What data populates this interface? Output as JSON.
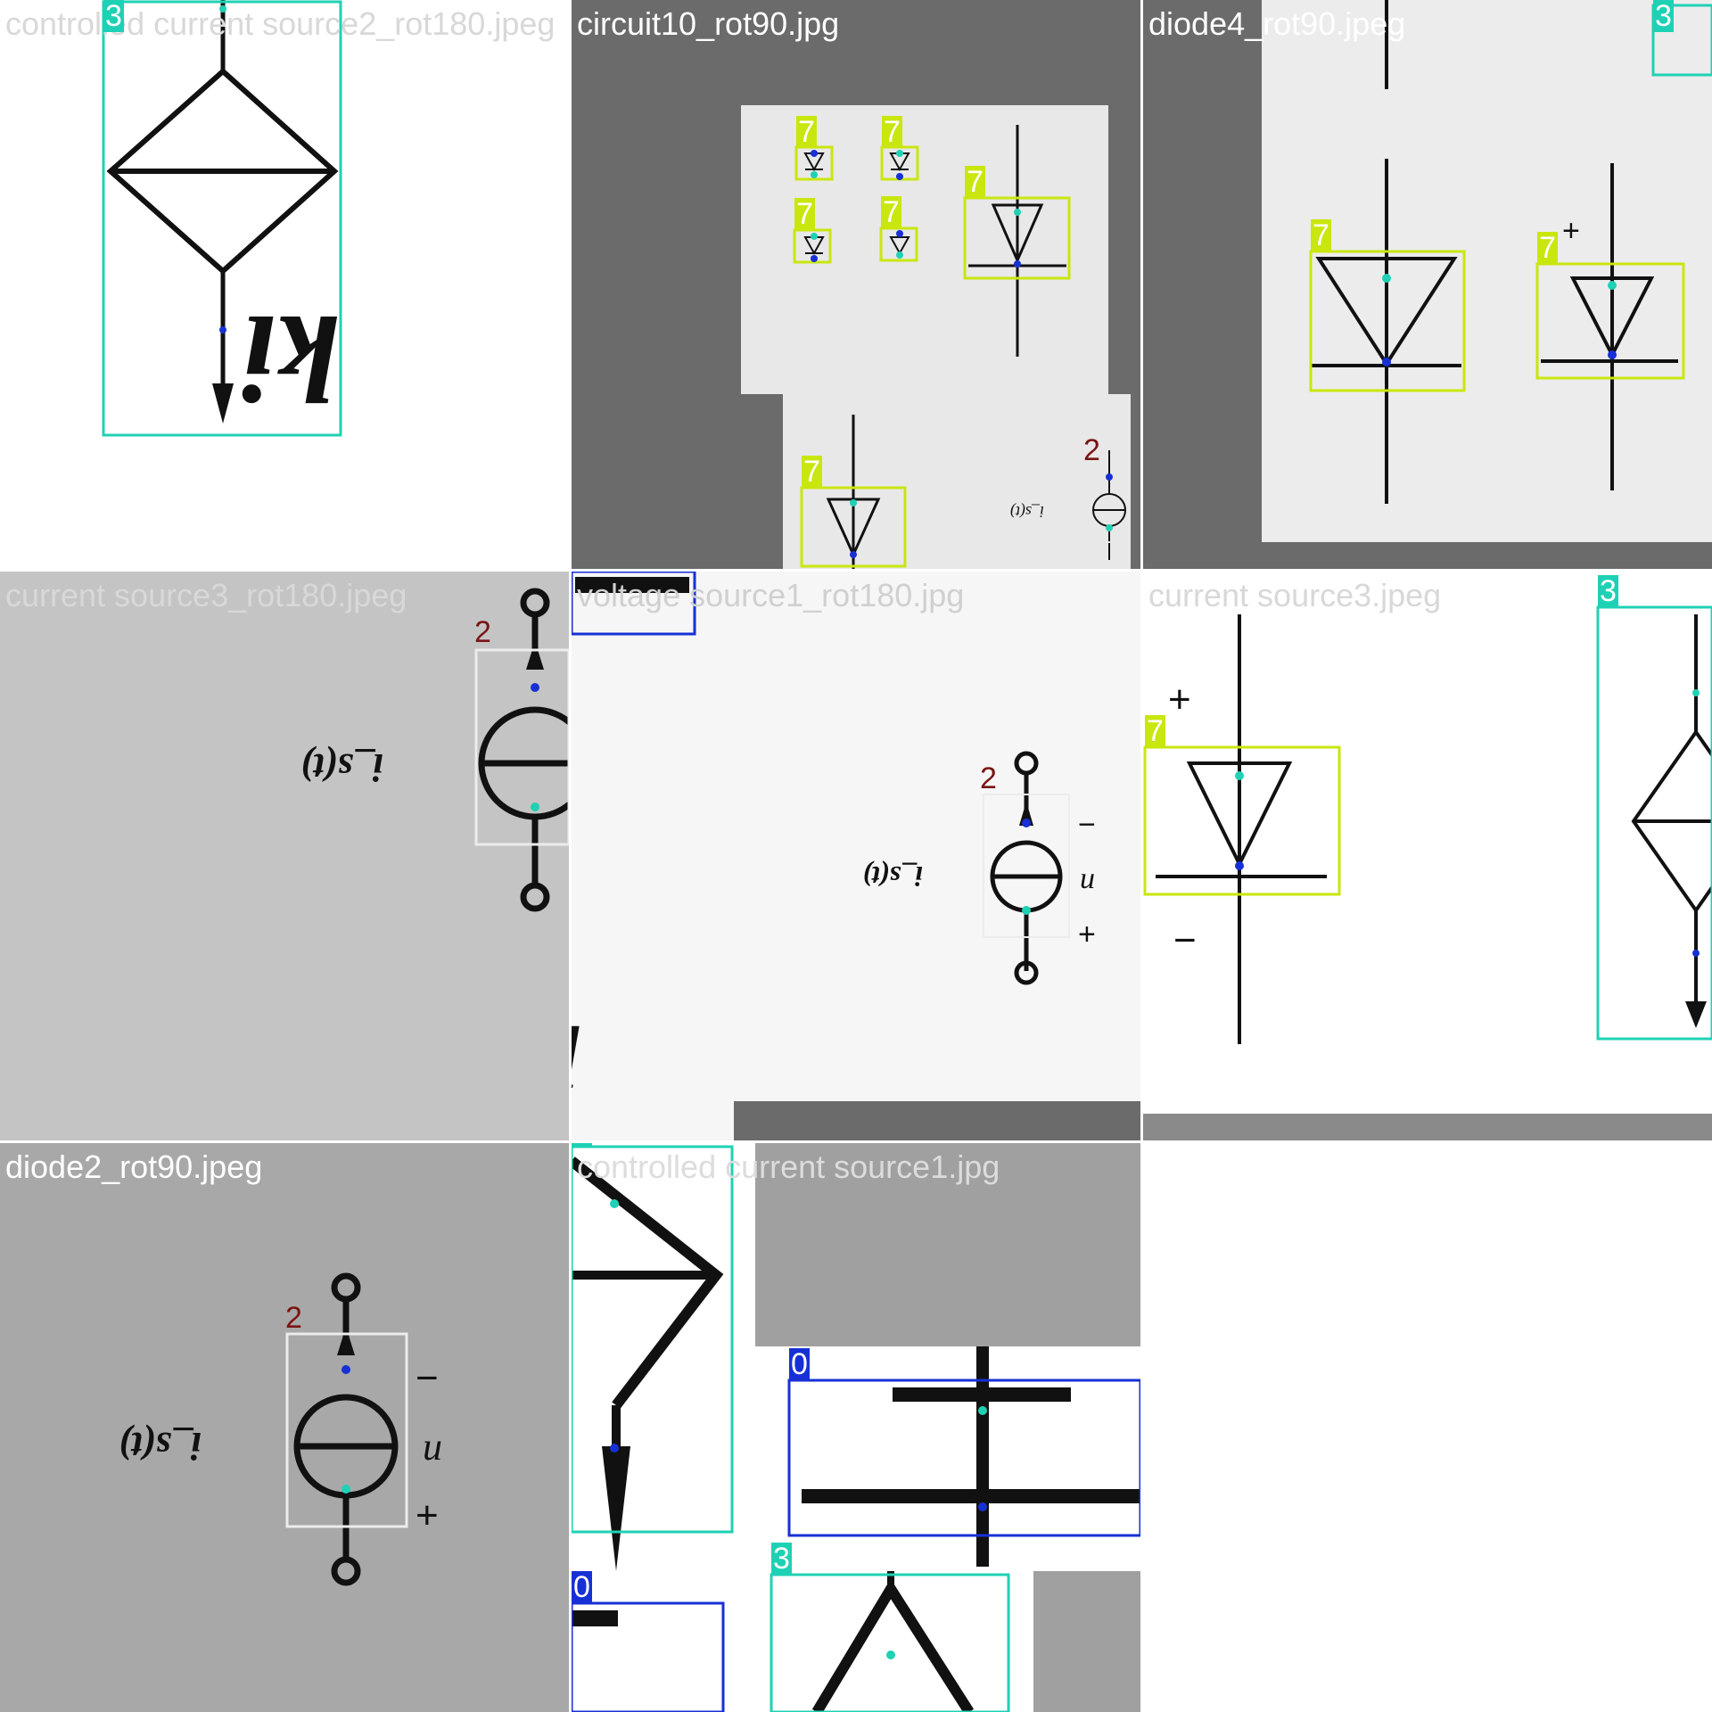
{
  "colors": {
    "class_3": "#1fd1b4",
    "class_0": "#1730d6",
    "class_7": "#c9e60e",
    "class_2": "#e8e8e8",
    "keypoint_a": "#1730d6",
    "keypoint_b": "#1fd1b4"
  },
  "tiles": [
    {
      "filename": "controlled current source2_rot180.jpeg",
      "labels": [
        "3"
      ],
      "text": "ki"
    },
    {
      "filename": "circuit10_rot90.jpg",
      "labels": [
        "7",
        "7",
        "7",
        "7",
        "7",
        "7",
        "2"
      ],
      "text": "i_s(t)"
    },
    {
      "filename": "diode4_rot90.jpeg",
      "labels": [
        "7",
        "7",
        "3"
      ],
      "text": ""
    },
    {
      "filename": "current source3_rot180.jpeg",
      "labels": [
        "2"
      ],
      "text": "i_s(t)"
    },
    {
      "filename": "voltage source1_rot180.jpg",
      "labels": [
        "0",
        "2"
      ],
      "text": "i_s(t)",
      "text2": "ki",
      "plus": "+",
      "minus": "−",
      "u": "u"
    },
    {
      "filename": "current source3.jpeg",
      "labels": [
        "7",
        "3"
      ],
      "text": "+",
      "text2": "−"
    },
    {
      "filename": "diode2_rot90.jpeg",
      "labels": [
        "2"
      ],
      "text": "i_s(t)",
      "plus": "+",
      "minus": "−",
      "u": "u"
    },
    {
      "filename": "controlled current source1.jpg",
      "labels": [
        "3",
        "0",
        "0",
        "3"
      ],
      "text": ""
    }
  ],
  "icons": [
    "controlled-source-diamond-icon",
    "diode-icon",
    "current-source-icon",
    "capacitor-icon"
  ]
}
